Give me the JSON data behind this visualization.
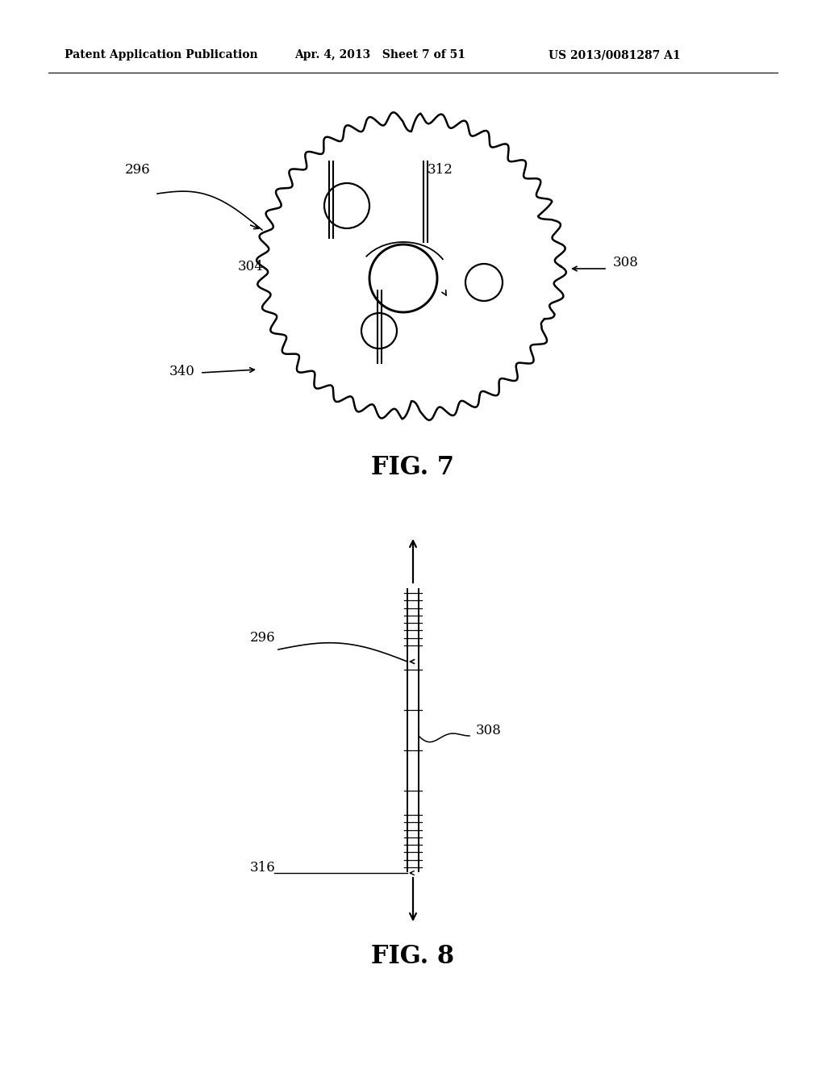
{
  "bg_color": "#ffffff",
  "header_left": "Patent Application Publication",
  "header_mid": "Apr. 4, 2013   Sheet 7 of 51",
  "header_right": "US 2013/0081287 A1",
  "fig7_title": "FIG. 7",
  "fig8_title": "FIG. 8",
  "label_296_fig7": "296",
  "label_308_fig7": "308",
  "label_304": "304",
  "label_312": "312",
  "label_340": "340",
  "label_296_fig8": "296",
  "label_308_fig8": "308",
  "label_316": "316"
}
